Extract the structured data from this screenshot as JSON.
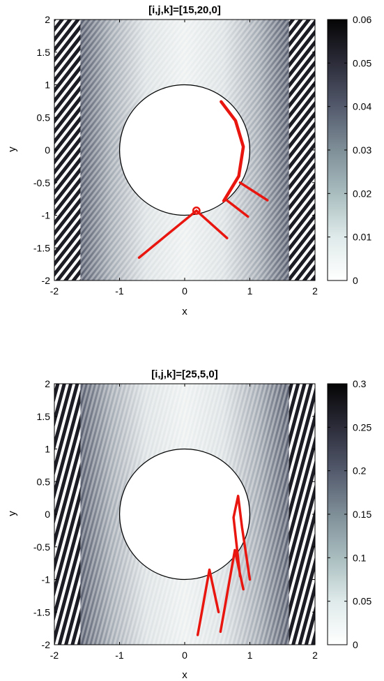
{
  "chart_data": [
    {
      "type": "heatmap",
      "title": "[i,j,k]=[15,20,0]",
      "xlabel": "x",
      "ylabel": "y",
      "xlim": [
        -2,
        2
      ],
      "ylim": [
        -2,
        2
      ],
      "xticks": [
        -2,
        -1,
        0,
        1,
        2
      ],
      "yticks": [
        2,
        1.5,
        1,
        0.5,
        0,
        -0.5,
        -1,
        -1.5,
        -2
      ],
      "xtick_labels": [
        "-2",
        "-1",
        "0",
        "1",
        "2"
      ],
      "ytick_labels": [
        "2",
        "1.5",
        "1",
        "0.5",
        "0",
        "-0.5",
        "-1",
        "-1.5",
        "-2"
      ],
      "colorbar": {
        "min": 0,
        "max": 0.06,
        "ticks": [
          0,
          0.01,
          0.02,
          0.03,
          0.04,
          0.05,
          0.06
        ],
        "tick_labels": [
          "0",
          "0.01",
          "0.02",
          "0.03",
          "0.04",
          "0.05",
          "0.06"
        ],
        "colors": [
          "#ffffff",
          "#dfeaea",
          "#a9bdbf",
          "#7f8f98",
          "#535a6c",
          "#2c2c3a",
          "#050505"
        ]
      },
      "stripe_angle": 38,
      "circle": {
        "cx": 0,
        "cy": 0,
        "r": 1
      },
      "rays": [
        [
          [
            -0.7,
            -1.65
          ],
          [
            0.18,
            -0.93
          ],
          [
            0.65,
            -1.35
          ]
        ],
        [
          [
            0.62,
            -0.75
          ],
          [
            0.97,
            -1.02
          ]
        ],
        [
          [
            0.85,
            -0.5
          ],
          [
            1.27,
            -0.77
          ]
        ]
      ],
      "arc": [
        [
          0.56,
          0.74
        ],
        [
          0.78,
          0.45
        ],
        [
          0.9,
          0.05
        ],
        [
          0.83,
          -0.4
        ],
        [
          0.6,
          -0.78
        ]
      ],
      "loop": {
        "x": 0.18,
        "y": -0.93,
        "r": 0.05
      },
      "grid": false
    },
    {
      "type": "heatmap",
      "title": "[i,j,k]=[25,5,0]",
      "xlabel": "x",
      "ylabel": "y",
      "xlim": [
        -2,
        2
      ],
      "ylim": [
        -2,
        2
      ],
      "xticks": [
        -2,
        -1,
        0,
        1,
        2
      ],
      "yticks": [
        2,
        1.5,
        1,
        0.5,
        0,
        -0.5,
        -1,
        -1.5,
        -2
      ],
      "xtick_labels": [
        "-2",
        "-1",
        "0",
        "1",
        "2"
      ],
      "ytick_labels": [
        "2",
        "1.5",
        "1",
        "0.5",
        "0",
        "-0.5",
        "-1",
        "-1.5",
        "-2"
      ],
      "colorbar": {
        "min": 0,
        "max": 0.3,
        "ticks": [
          0,
          0.05,
          0.1,
          0.15,
          0.2,
          0.25,
          0.3
        ],
        "tick_labels": [
          "0",
          "0.05",
          "0.1",
          "0.15",
          "0.2",
          "0.25",
          "0.3"
        ],
        "colors": [
          "#ffffff",
          "#dfeaea",
          "#a9bdbf",
          "#7f8f98",
          "#535a6c",
          "#2c2c3a",
          "#050505"
        ]
      },
      "stripe_angle": 15,
      "circle": {
        "cx": 0,
        "cy": 0,
        "r": 1
      },
      "rays": [
        [
          [
            0.2,
            -1.85
          ],
          [
            0.38,
            -0.85
          ],
          [
            0.52,
            -1.5
          ]
        ],
        [
          [
            0.55,
            -1.8
          ],
          [
            0.77,
            -0.55
          ],
          [
            0.9,
            -1.15
          ]
        ],
        [
          [
            0.85,
            -0.95
          ],
          [
            0.75,
            -0.05
          ],
          [
            0.82,
            0.28
          ],
          [
            0.88,
            -0.2
          ],
          [
            1.0,
            -1.0
          ]
        ]
      ],
      "arc": [],
      "grid": false
    }
  ]
}
